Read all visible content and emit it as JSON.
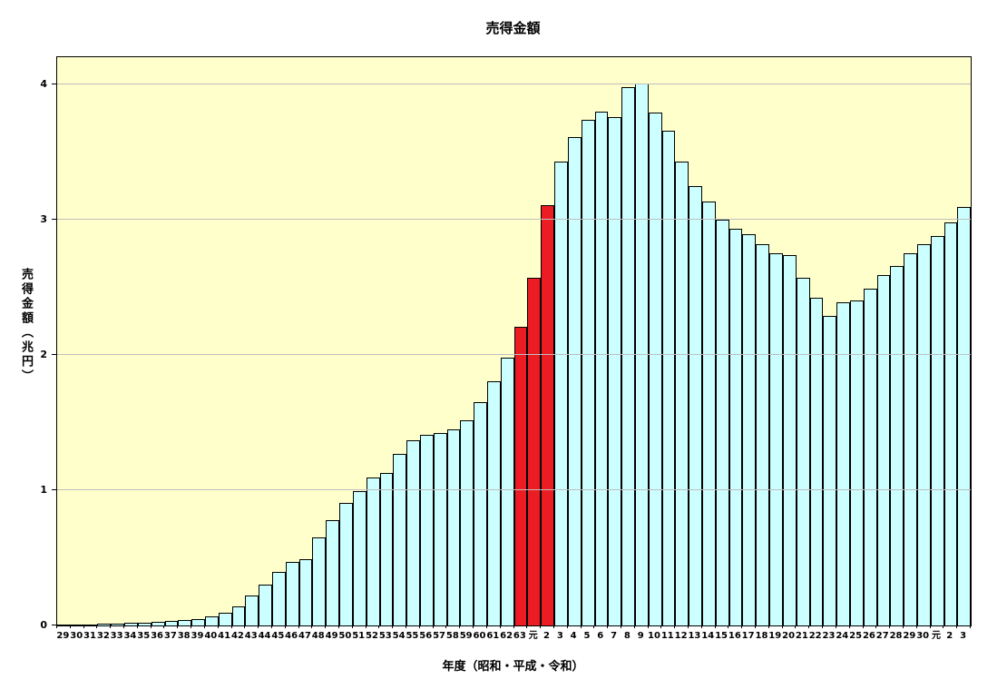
{
  "chart_data": {
    "type": "bar",
    "title": "売得金額",
    "xlabel": "年度（昭和・平成・令和）",
    "ylabel": "売得金額（兆円）",
    "ylim": [
      0,
      4.2
    ],
    "yticks": [
      0,
      1,
      2,
      3,
      4
    ],
    "grid": "horizontal-at-integer-ticks",
    "legend": "none",
    "categories": [
      "29",
      "30",
      "31",
      "32",
      "33",
      "34",
      "35",
      "36",
      "37",
      "38",
      "39",
      "40",
      "41",
      "42",
      "43",
      "44",
      "45",
      "46",
      "47",
      "48",
      "49",
      "50",
      "51",
      "52",
      "53",
      "54",
      "55",
      "56",
      "57",
      "58",
      "59",
      "60",
      "61",
      "62",
      "63",
      "元",
      "2",
      "3",
      "4",
      "5",
      "6",
      "7",
      "8",
      "9",
      "10",
      "11",
      "12",
      "13",
      "14",
      "15",
      "16",
      "17",
      "18",
      "19",
      "20",
      "21",
      "22",
      "23",
      "24",
      "25",
      "26",
      "27",
      "28",
      "29",
      "30",
      "元",
      "2",
      "3"
    ],
    "values": [
      0.005,
      0.007,
      0.009,
      0.012,
      0.014,
      0.017,
      0.021,
      0.026,
      0.032,
      0.039,
      0.05,
      0.066,
      0.093,
      0.138,
      0.224,
      0.303,
      0.394,
      0.468,
      0.491,
      0.654,
      0.779,
      0.903,
      0.993,
      1.095,
      1.129,
      1.265,
      1.367,
      1.412,
      1.424,
      1.446,
      1.514,
      1.65,
      1.808,
      1.982,
      2.21,
      2.567,
      3.107,
      3.43,
      3.61,
      3.74,
      3.8,
      3.76,
      3.98,
      4.005,
      3.79,
      3.66,
      3.43,
      3.25,
      3.13,
      3.0,
      2.93,
      2.89,
      2.82,
      2.75,
      2.74,
      2.57,
      2.42,
      2.29,
      2.39,
      2.4,
      2.49,
      2.59,
      2.66,
      2.75,
      2.82,
      2.88,
      2.98,
      3.09
    ],
    "highlight_indices": [
      34,
      35,
      36
    ],
    "colors": {
      "bar_default": "#CCFFFF",
      "bar_highlight": "#EB1C24",
      "bar_border": "#000000",
      "plot_background": "#FFFFCC",
      "page_background": "#FFFFFF",
      "gridline": "#BFBFBF",
      "text": "#000000"
    }
  }
}
